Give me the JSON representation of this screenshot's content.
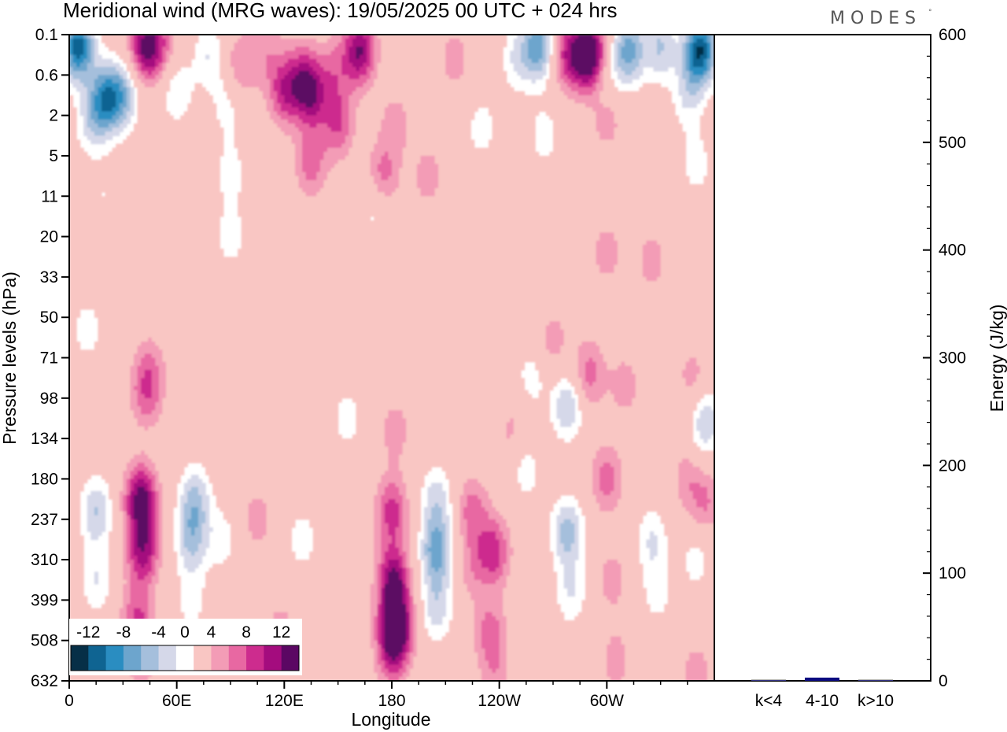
{
  "chart_data": {
    "type": "heatmap",
    "title": "Meridional wind (MRG waves):  19/05/2025  00 UTC  + 024 hrs",
    "logo": "MODES",
    "xlabel": "Longitude",
    "ylabel": "Pressure levels (hPa)",
    "x_ticks": [
      "0",
      "60E",
      "120E",
      "180",
      "120W",
      "60W"
    ],
    "x_tick_degrees": [
      0,
      60,
      120,
      180,
      240,
      300
    ],
    "xlim": [
      0,
      360
    ],
    "y_levels": [
      "0.1",
      "0.6",
      "2",
      "5",
      "11",
      "20",
      "33",
      "50",
      "71",
      "98",
      "134",
      "180",
      "237",
      "310",
      "399",
      "508",
      "632"
    ],
    "colorbar": {
      "labels": [
        "-12",
        "-8",
        "-4",
        "0",
        "4",
        "8",
        "12"
      ],
      "levels": [
        -14,
        -12,
        -10,
        -8,
        -6,
        -4,
        -2,
        2,
        4,
        6,
        8,
        10,
        12,
        14
      ],
      "colors": [
        "#062f47",
        "#0f6492",
        "#2a8dc1",
        "#6da5cd",
        "#a5bfdc",
        "#d5d8e9",
        "#ffffff",
        "#f9c6c3",
        "#f39cb6",
        "#e868a2",
        "#cd2c8e",
        "#a40c7e",
        "#5b0763"
      ]
    },
    "cells": [
      {
        "lon": 5,
        "lev": 0.3,
        "v": -13
      },
      {
        "lon": 20,
        "lev": 1.6,
        "v": -10
      },
      {
        "lon": 30,
        "lev": 1.5,
        "v": -7
      },
      {
        "lon": 12,
        "lev": 2.2,
        "v": -4
      },
      {
        "lon": 42,
        "lev": 0.3,
        "v": 9
      },
      {
        "lon": 50,
        "lev": 0.3,
        "v": 5
      },
      {
        "lon": 78,
        "lev": 0.5,
        "v": -4
      },
      {
        "lon": 60,
        "lev": 1.4,
        "v": -4
      },
      {
        "lon": 88,
        "lev": 1.7,
        "v": -3
      },
      {
        "lon": 95,
        "lev": 0.8,
        "v": 4
      },
      {
        "lon": 110,
        "lev": 0.4,
        "v": 3
      },
      {
        "lon": 120,
        "lev": 1.4,
        "v": 7
      },
      {
        "lon": 135,
        "lev": 1.5,
        "v": 8
      },
      {
        "lon": 130,
        "lev": 1.0,
        "v": 5
      },
      {
        "lon": 148,
        "lev": 0.9,
        "v": 4
      },
      {
        "lon": 162,
        "lev": 0.4,
        "v": 10
      },
      {
        "lon": 150,
        "lev": 2.2,
        "v": 6
      },
      {
        "lon": 135,
        "lev": 3.2,
        "v": 5
      },
      {
        "lon": 175,
        "lev": 3.5,
        "v": 5
      },
      {
        "lon": 200,
        "lev": 3.5,
        "v": 3
      },
      {
        "lon": 182,
        "lev": 2.2,
        "v": 3
      },
      {
        "lon": 215,
        "lev": 0.6,
        "v": 3
      },
      {
        "lon": 250,
        "lev": 0.6,
        "v": -4
      },
      {
        "lon": 262,
        "lev": 0.3,
        "v": -9
      },
      {
        "lon": 290,
        "lev": 0.5,
        "v": 14
      },
      {
        "lon": 278,
        "lev": 0.5,
        "v": 7
      },
      {
        "lon": 300,
        "lev": 1.3,
        "v": -3
      },
      {
        "lon": 312,
        "lev": 0.4,
        "v": -9
      },
      {
        "lon": 330,
        "lev": 0.3,
        "v": -6
      },
      {
        "lon": 352,
        "lev": 0.4,
        "v": -14
      },
      {
        "lon": 345,
        "lev": 1.5,
        "v": -4
      },
      {
        "lon": 300,
        "lev": 2.0,
        "v": 4
      },
      {
        "lon": 230,
        "lev": 2.3,
        "v": -3
      },
      {
        "lon": 265,
        "lev": 2.5,
        "v": -3
      },
      {
        "lon": 350,
        "lev": 3.2,
        "v": -3
      },
      {
        "lon": 90,
        "lev": 5.0,
        "v": -3
      },
      {
        "lon": 90,
        "lev": 3.4,
        "v": -3
      },
      {
        "lon": 20,
        "lev": 4.0,
        "v": -2
      },
      {
        "lon": 170,
        "lev": 4.3,
        "v": -3
      },
      {
        "lon": 300,
        "lev": 5.4,
        "v": 3
      },
      {
        "lon": 325,
        "lev": 5.6,
        "v": 3
      },
      {
        "lon": 45,
        "lev": 8.2,
        "v": 3
      },
      {
        "lon": 43,
        "lev": 8.9,
        "v": 5
      },
      {
        "lon": 10,
        "lev": 7.3,
        "v": -3
      },
      {
        "lon": 270,
        "lev": 7.6,
        "v": 3
      },
      {
        "lon": 290,
        "lev": 8.4,
        "v": 5
      },
      {
        "lon": 310,
        "lev": 8.7,
        "v": 3
      },
      {
        "lon": 245,
        "lev": 9.6,
        "v": 4
      },
      {
        "lon": 258,
        "lev": 8.5,
        "v": -3
      },
      {
        "lon": 278,
        "lev": 9.2,
        "v": -6
      },
      {
        "lon": 240,
        "lev": 9.2,
        "v": -3
      },
      {
        "lon": 348,
        "lev": 8.5,
        "v": 3
      },
      {
        "lon": 355,
        "lev": 9.6,
        "v": -6
      },
      {
        "lon": 15,
        "lev": 11.8,
        "v": -6
      },
      {
        "lon": 15,
        "lev": 13.5,
        "v": -4
      },
      {
        "lon": 40,
        "lev": 11.5,
        "v": 11
      },
      {
        "lon": 41,
        "lev": 12.8,
        "v": 9
      },
      {
        "lon": 38,
        "lev": 14.5,
        "v": 6
      },
      {
        "lon": 40,
        "lev": 15.5,
        "v": 3
      },
      {
        "lon": 70,
        "lev": 11.5,
        "v": -6
      },
      {
        "lon": 68,
        "lev": 12.5,
        "v": -6
      },
      {
        "lon": 68,
        "lev": 14.0,
        "v": -3
      },
      {
        "lon": 85,
        "lev": 12.5,
        "v": -3
      },
      {
        "lon": 105,
        "lev": 12.0,
        "v": 3
      },
      {
        "lon": 118,
        "lev": 14.8,
        "v": 3
      },
      {
        "lon": 130,
        "lev": 12.5,
        "v": -3
      },
      {
        "lon": 155,
        "lev": 9.5,
        "v": -3
      },
      {
        "lon": 182,
        "lev": 9.8,
        "v": 3
      },
      {
        "lon": 180,
        "lev": 11.8,
        "v": 7
      },
      {
        "lon": 181,
        "lev": 13.5,
        "v": 10
      },
      {
        "lon": 182,
        "lev": 14.7,
        "v": 14
      },
      {
        "lon": 180,
        "lev": 15.5,
        "v": 4
      },
      {
        "lon": 205,
        "lev": 11.5,
        "v": -5
      },
      {
        "lon": 205,
        "lev": 12.8,
        "v": -9
      },
      {
        "lon": 205,
        "lev": 14.2,
        "v": -5
      },
      {
        "lon": 225,
        "lev": 11.8,
        "v": 5
      },
      {
        "lon": 225,
        "lev": 13.2,
        "v": 3
      },
      {
        "lon": 237,
        "lev": 12.8,
        "v": 7
      },
      {
        "lon": 235,
        "lev": 14.8,
        "v": 5
      },
      {
        "lon": 238,
        "lev": 16.0,
        "v": 3
      },
      {
        "lon": 255,
        "lev": 10.8,
        "v": -3
      },
      {
        "lon": 278,
        "lev": 12.3,
        "v": -7
      },
      {
        "lon": 280,
        "lev": 13.8,
        "v": -4
      },
      {
        "lon": 300,
        "lev": 11.0,
        "v": 5
      },
      {
        "lon": 303,
        "lev": 13.5,
        "v": 3
      },
      {
        "lon": 305,
        "lev": 15.5,
        "v": 3
      },
      {
        "lon": 325,
        "lev": 12.5,
        "v": -4
      },
      {
        "lon": 328,
        "lev": 13.8,
        "v": -3
      },
      {
        "lon": 345,
        "lev": 11.0,
        "v": 3
      },
      {
        "lon": 355,
        "lev": 11.6,
        "v": 4
      },
      {
        "lon": 350,
        "lev": 15.8,
        "v": 3
      },
      {
        "lon": 350,
        "lev": 13.0,
        "v": -3
      }
    ],
    "energy": {
      "ylabel": "Energy (J/kg)",
      "ylim": [
        0,
        600
      ],
      "y_ticks": [
        0,
        100,
        200,
        300,
        400,
        500,
        600
      ],
      "categories": [
        "k<4",
        "4-10",
        "k>10"
      ],
      "values": [
        0.5,
        3,
        0.5
      ],
      "bar_color": "#0a0a80"
    }
  }
}
